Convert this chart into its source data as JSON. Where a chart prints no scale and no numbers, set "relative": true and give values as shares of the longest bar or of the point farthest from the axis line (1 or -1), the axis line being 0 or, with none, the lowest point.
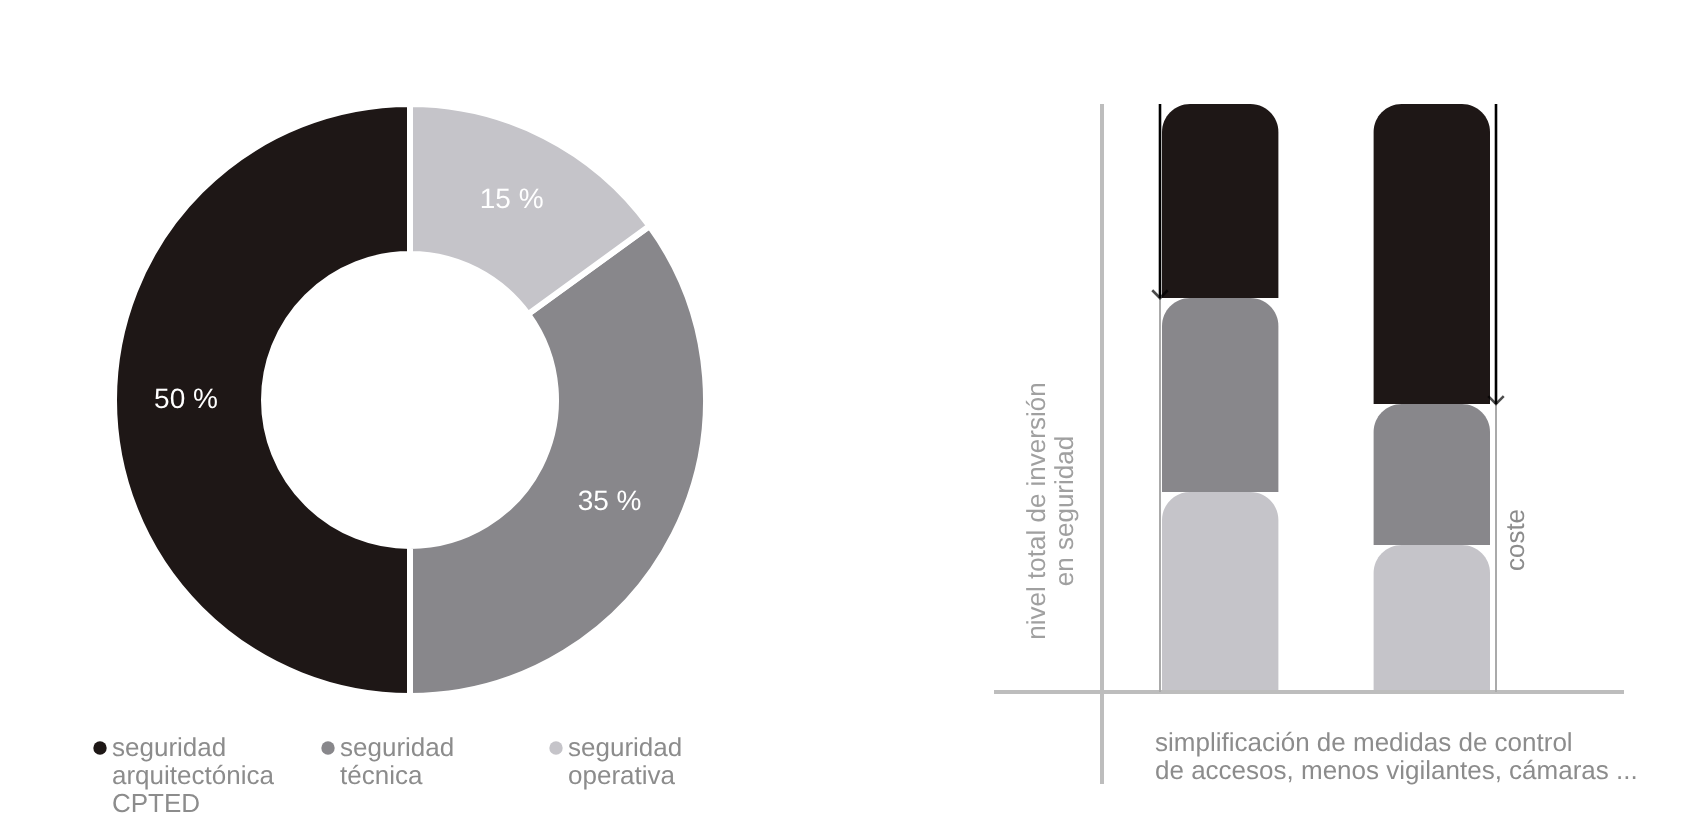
{
  "chart_data": [
    {
      "type": "donut",
      "categories": [
        "seguridad arquitectónica CPTED",
        "seguridad técnica",
        "seguridad operativa"
      ],
      "values": [
        50,
        35,
        15
      ],
      "colors": [
        "#1e1716",
        "#88878b",
        "#c5c4c9"
      ],
      "value_labels": [
        "50 %",
        "35 %",
        "15 %"
      ],
      "legend": "bottom"
    },
    {
      "type": "bar",
      "relative": true,
      "stacked": true,
      "categories": [
        null,
        null
      ],
      "xlabel": "simplificación de medidas de control\nde accesos, menos vigilantes, cámaras ...",
      "ylabel": "nivel total de inversión\nen seguridad",
      "annotations": [
        "coste"
      ],
      "series": [
        {
          "color": "#c5c4c9",
          "values": [
            0.34,
            0.25
          ]
        },
        {
          "color": "#88878b",
          "values": [
            0.33,
            0.24
          ]
        },
        {
          "color": "#1e1716",
          "values": [
            0.33,
            0.51
          ]
        }
      ]
    }
  ]
}
